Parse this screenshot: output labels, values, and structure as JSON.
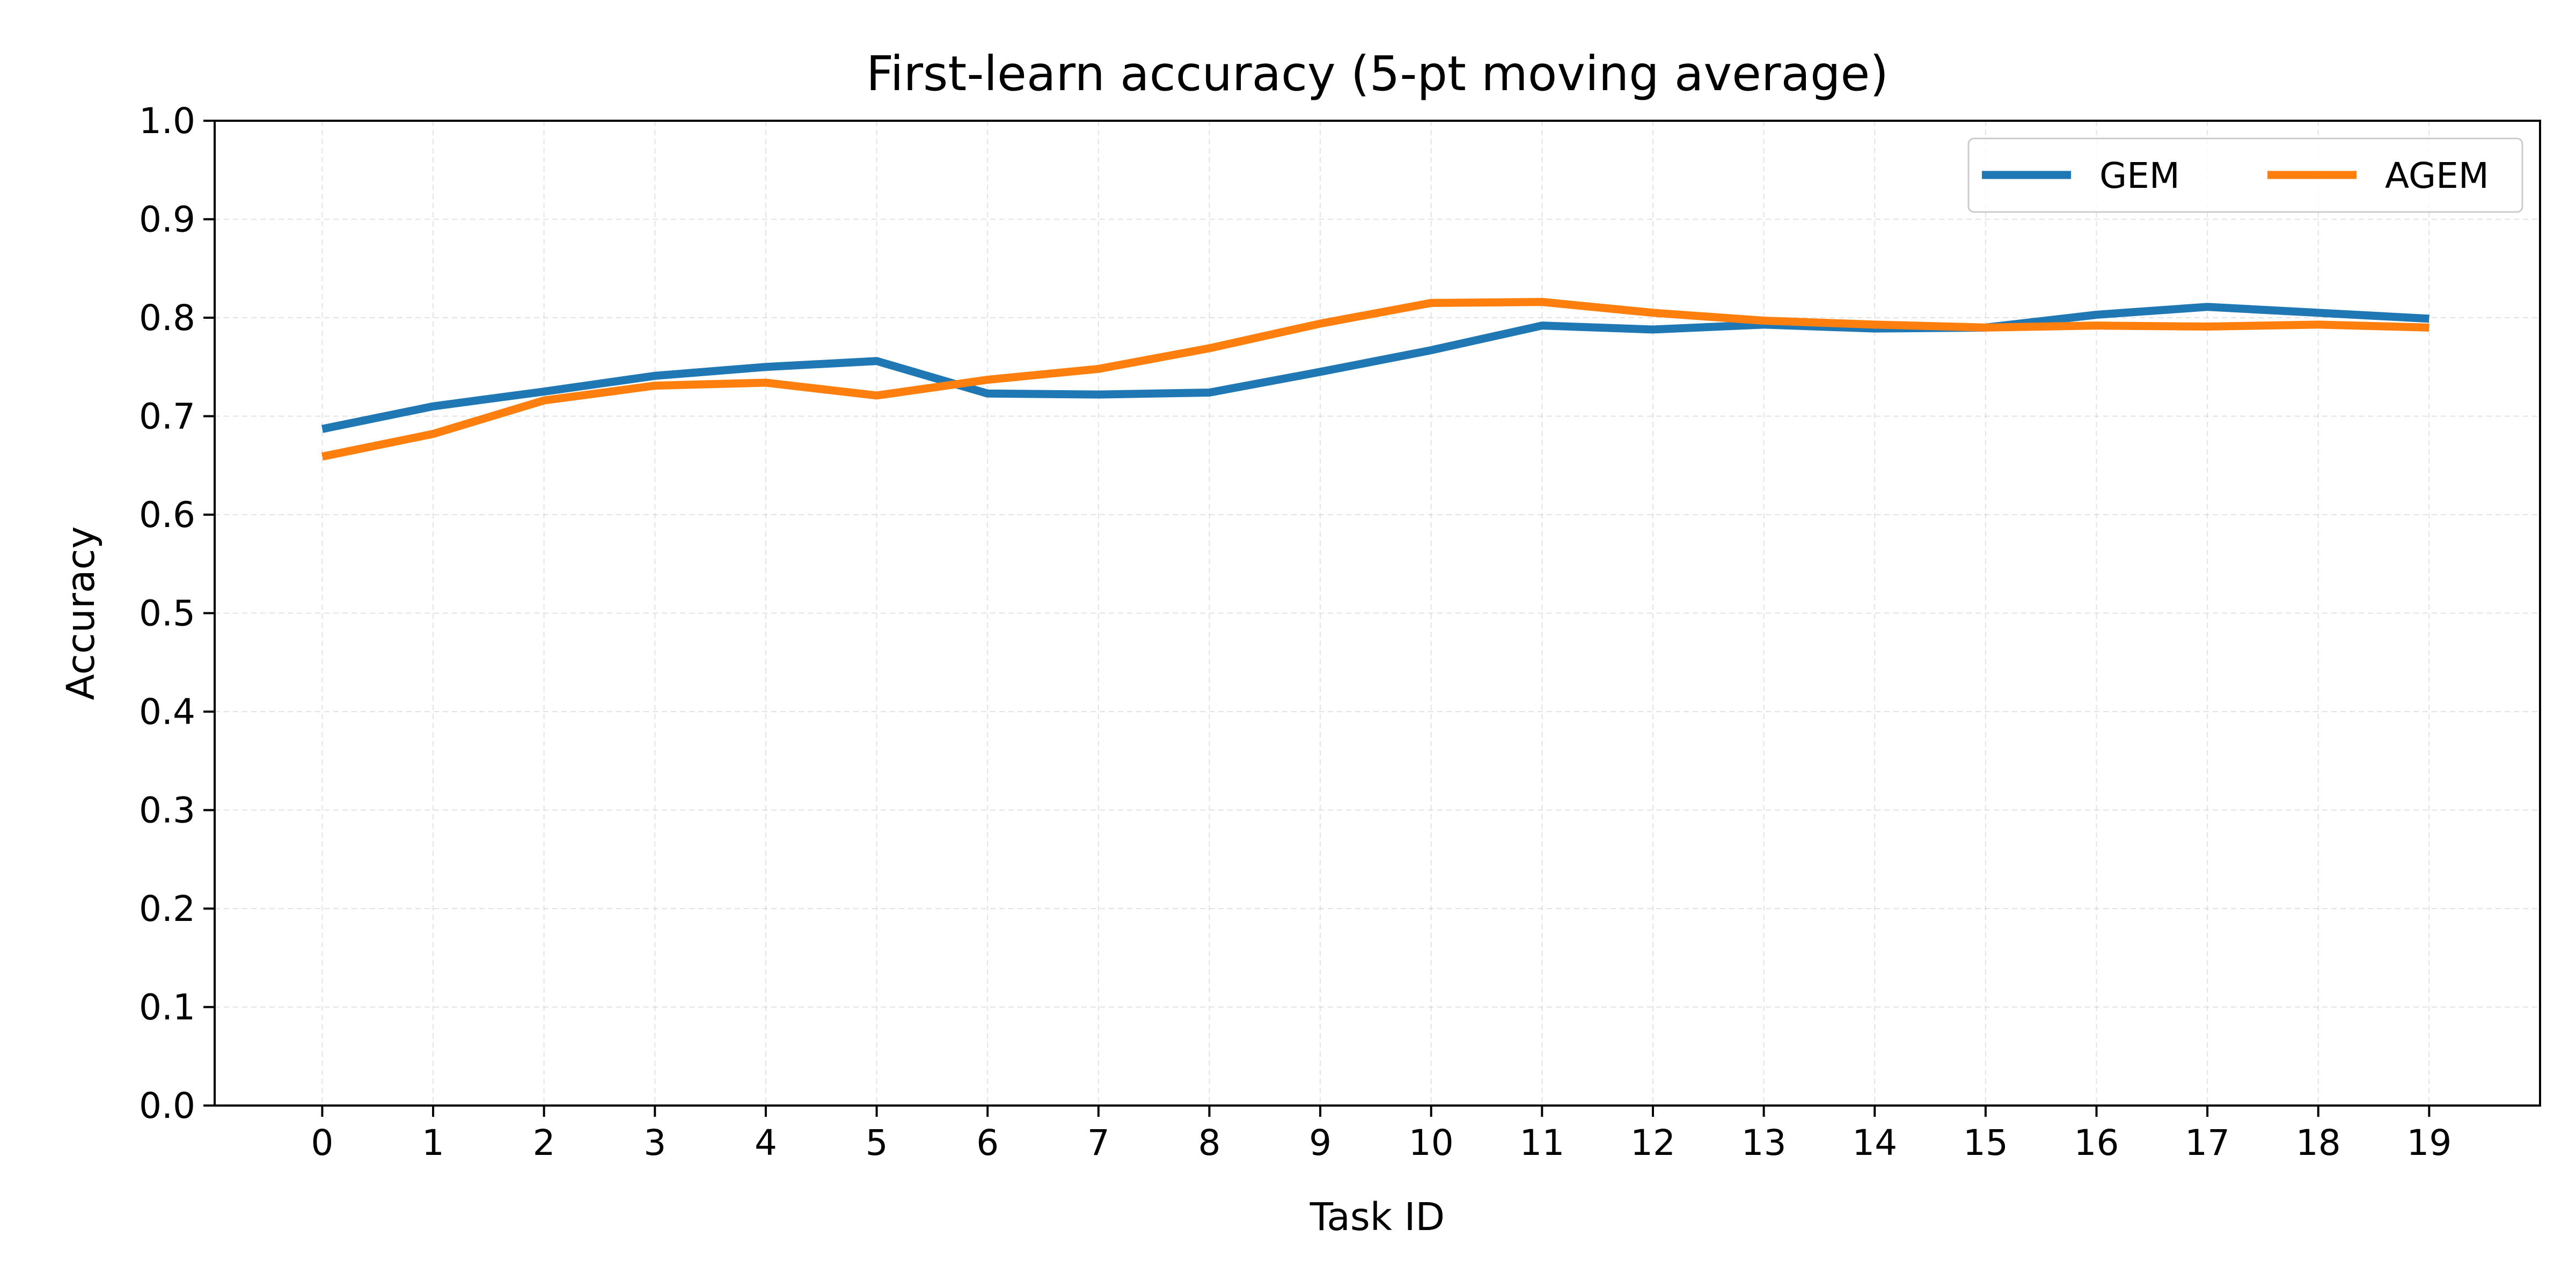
{
  "chart_data": {
    "type": "line",
    "title": "First-learn accuracy (5-pt moving average)",
    "xlabel": "Task ID",
    "ylabel": "Accuracy",
    "x": [
      0,
      1,
      2,
      3,
      4,
      5,
      6,
      7,
      8,
      9,
      10,
      11,
      12,
      13,
      14,
      15,
      16,
      17,
      18,
      19
    ],
    "xticks": [
      "0",
      "1",
      "2",
      "3",
      "4",
      "5",
      "6",
      "7",
      "8",
      "9",
      "10",
      "11",
      "12",
      "13",
      "14",
      "15",
      "16",
      "17",
      "18",
      "19"
    ],
    "xlim": [
      -0.97,
      20.0
    ],
    "ylim": [
      0.0,
      1.0
    ],
    "yticks": [
      "0.0",
      "0.1",
      "0.2",
      "0.3",
      "0.4",
      "0.5",
      "0.6",
      "0.7",
      "0.8",
      "0.9",
      "1.0"
    ],
    "grid": true,
    "legend_position": "top-right",
    "series": [
      {
        "name": "GEM",
        "color": "#1f77b4",
        "values": [
          0.687,
          0.71,
          0.725,
          0.741,
          0.75,
          0.756,
          0.723,
          0.722,
          0.724,
          0.745,
          0.767,
          0.792,
          0.788,
          0.793,
          0.789,
          0.79,
          0.803,
          0.811,
          0.805,
          0.799
        ]
      },
      {
        "name": "AGEM",
        "color": "#ff7f0e",
        "values": [
          0.659,
          0.682,
          0.716,
          0.731,
          0.734,
          0.721,
          0.737,
          0.748,
          0.769,
          0.794,
          0.815,
          0.816,
          0.805,
          0.797,
          0.793,
          0.79,
          0.792,
          0.791,
          0.793,
          0.79
        ]
      }
    ]
  }
}
